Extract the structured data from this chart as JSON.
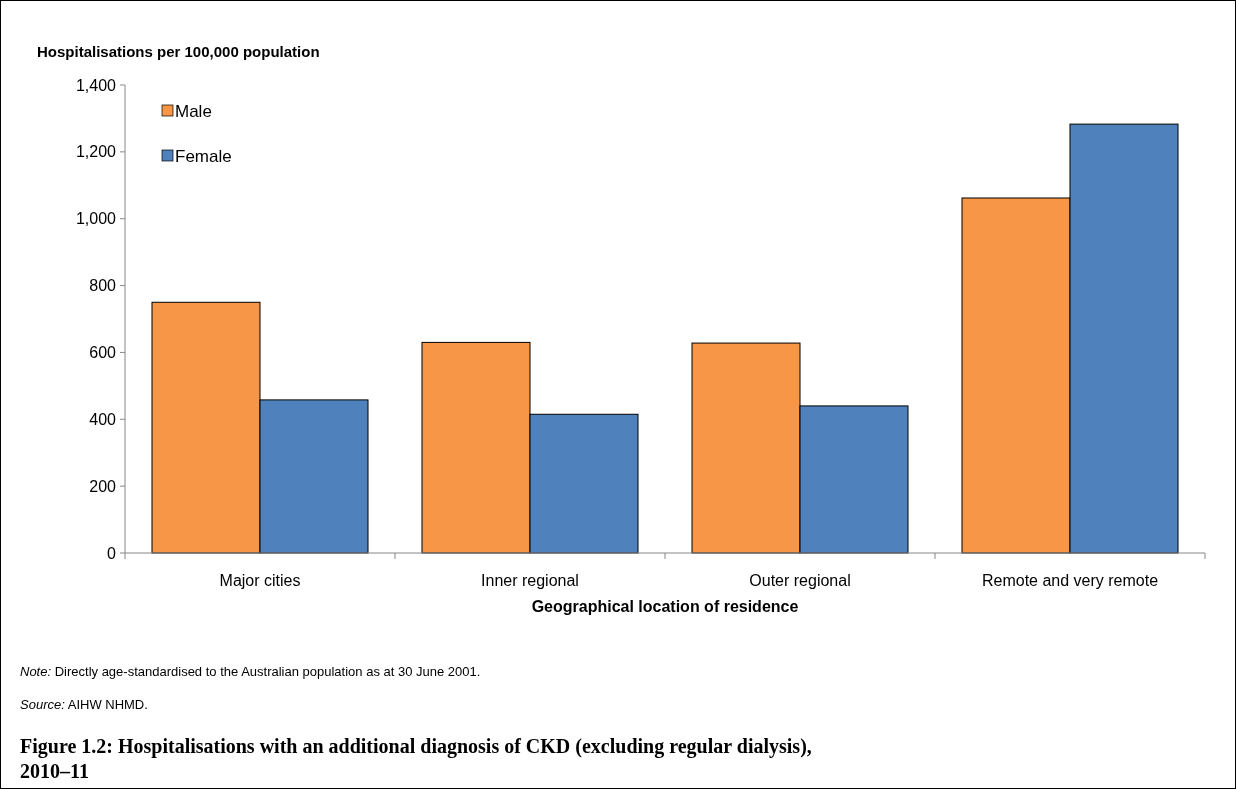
{
  "chart_data": {
    "type": "bar",
    "title": "Figure 1.2: Hospitalisations with an additional diagnosis of CKD (excluding regular dialysis), 2010–11",
    "ylabel": "Hospitalisations per 100,000 population",
    "xlabel": "Geographical location of residence",
    "annotations": [
      "Note: Directly age-standardised to the Australian population as at 30 June 2001.",
      "Source: AIHW NHMD."
    ],
    "categories": [
      "Major cities",
      "Inner regional",
      "Outer regional",
      "Remote and very remote"
    ],
    "series": [
      {
        "name": "Male",
        "color": "#f79646",
        "values": [
          750,
          630,
          628,
          1062
        ]
      },
      {
        "name": "Female",
        "color": "#4f81bd",
        "values": [
          458,
          415,
          440,
          1283
        ]
      }
    ],
    "ylim": [
      0,
      1400
    ],
    "yticks": [
      {
        "value": 0,
        "label": "0"
      },
      {
        "value": 200,
        "label": "200"
      },
      {
        "value": 400,
        "label": "400"
      },
      {
        "value": 600,
        "label": "600"
      },
      {
        "value": 800,
        "label": "800"
      },
      {
        "value": 1000,
        "label": "1,000"
      },
      {
        "value": 1200,
        "label": "1,200"
      },
      {
        "value": 1400,
        "label": "1,400"
      }
    ],
    "grid": false,
    "legend": "top left"
  }
}
